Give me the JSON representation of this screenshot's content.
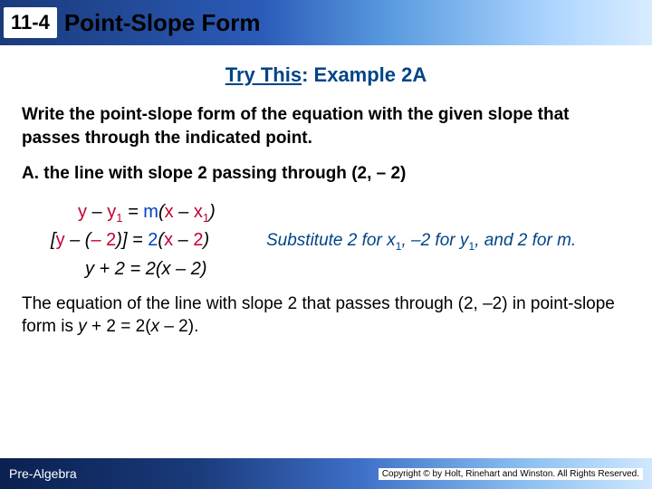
{
  "header": {
    "lesson_number": "11-4",
    "title": "Point-Slope Form"
  },
  "section": {
    "label_underlined": "Try This",
    "label_rest": ": Example 2A"
  },
  "instruction": "Write the point-slope form of the equation with the given slope that passes through the indicated point.",
  "problem": "A. the line with slope 2 passing through (2, – 2)",
  "equations": {
    "row1_html": "<span class='r'>y</span> – <span class='r'>y</span><span class='r sub'>1</span> = <span class='b'>m</span>(<span class='r'>x</span> – <span class='r'>x</span><span class='r sub'>1</span>)",
    "row2_html": "[<span class='r'>y</span> – (<span class='r'>– 2</span>)] = <span class='b'>2</span>(<span class='r'>x</span> – <span class='r'>2</span>)",
    "row3_html": "y + 2 = 2(x – 2)",
    "explain_html": "Substitute 2 for x<span class='sub'>1</span>, –2 for y<span class='sub'>1</span>, and 2 for m."
  },
  "conclusion_html": "The equation of the line with slope 2 that passes through (2, –2) in point-slope form is <i>y</i> + 2 = 2(<i>x</i> – 2).",
  "footer": {
    "left": "Pre-Algebra",
    "right": "Copyright © by Holt, Rinehart and Winston. All Rights Reserved."
  }
}
